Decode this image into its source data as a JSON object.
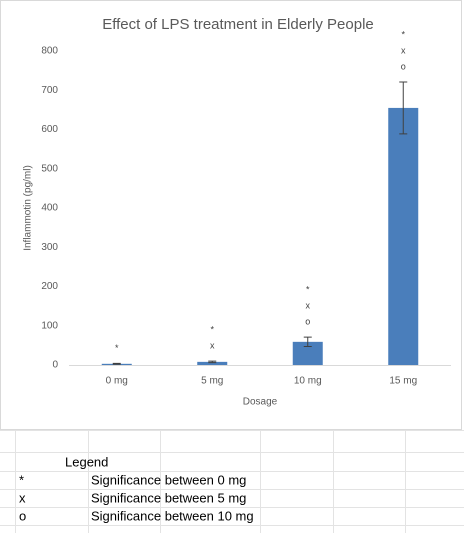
{
  "chart_data": {
    "type": "bar",
    "title": "Effect of LPS treatment in Elderly People",
    "x_label": "Dosage",
    "y_label": "Inflammotin (pg/ml)",
    "categories": [
      "0 mg",
      "5 mg",
      "10 mg",
      "15 mg"
    ],
    "values": [
      3,
      8,
      59,
      655
    ],
    "errors": [
      1,
      2,
      12,
      66
    ],
    "annotations": [
      [
        "*"
      ],
      [
        "*",
        "x"
      ],
      [
        "*",
        "x",
        "o"
      ],
      [
        "*",
        "x",
        "o"
      ]
    ],
    "color": "#4a7ebb",
    "ylim": [
      0,
      800
    ],
    "yticks": [
      0,
      100,
      200,
      300,
      400,
      500,
      600,
      700,
      800
    ]
  },
  "legend": {
    "title": "Legend",
    "rows": [
      {
        "symbol": "*",
        "text": "Significance between 0 mg"
      },
      {
        "symbol": "x",
        "text": "Significance between 5 mg"
      },
      {
        "symbol": "o",
        "text": "Significance between 10 mg"
      }
    ]
  }
}
